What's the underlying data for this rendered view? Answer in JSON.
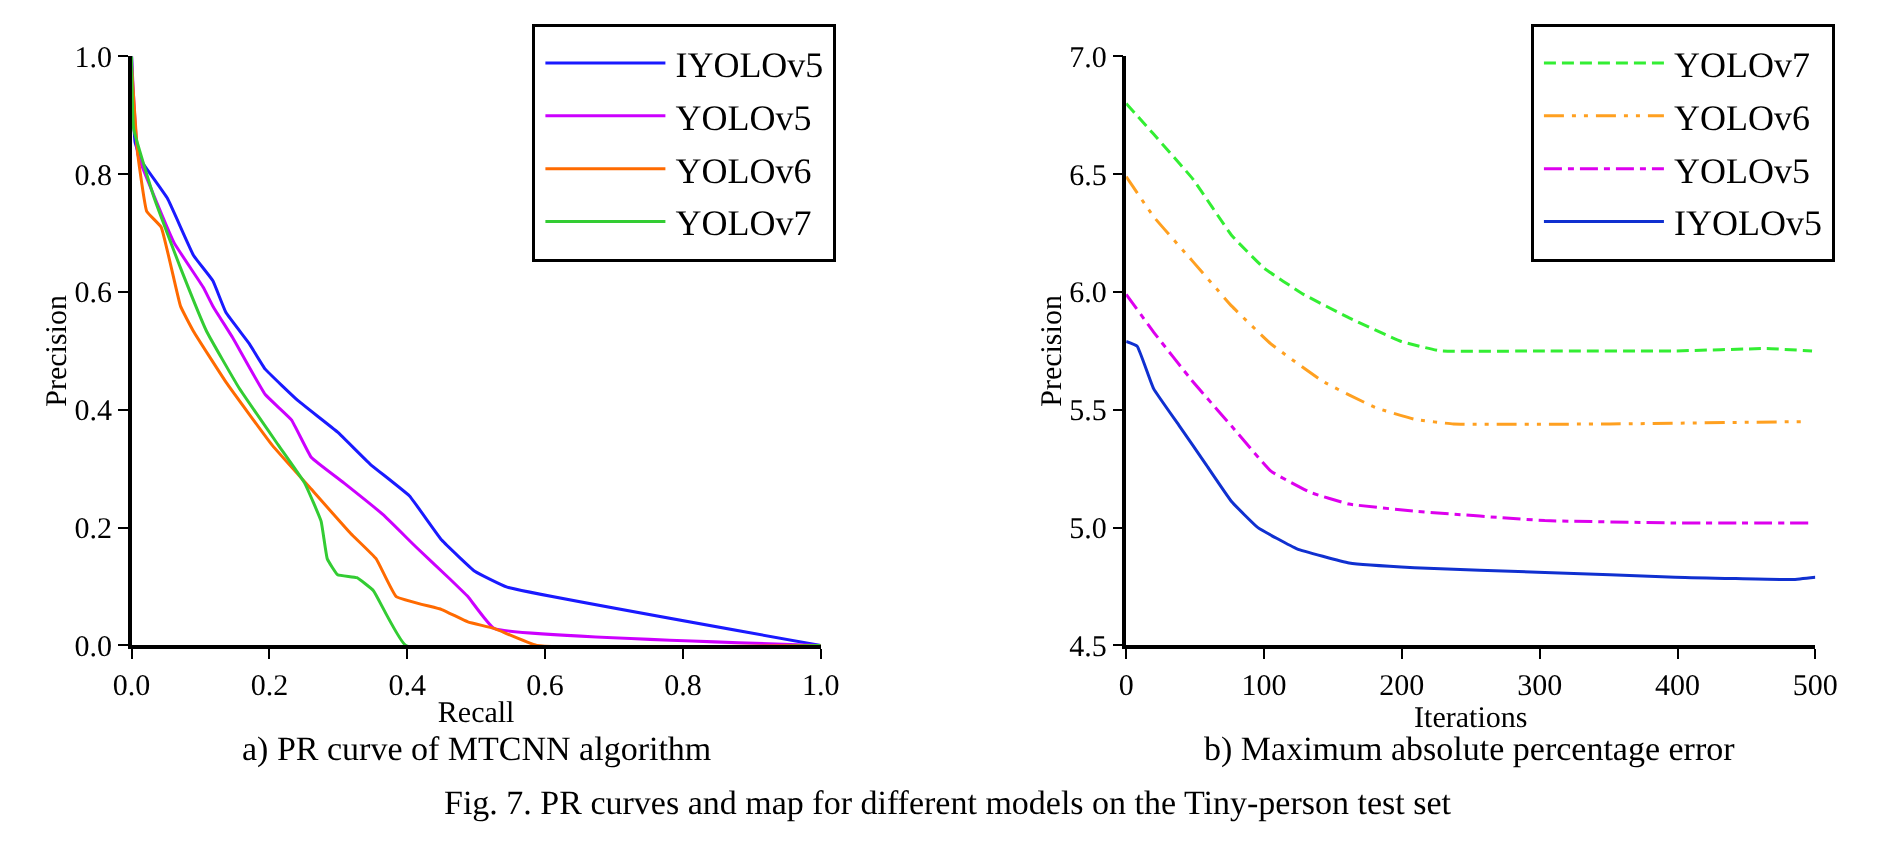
{
  "chart_data": [
    {
      "type": "line",
      "title": "a) PR curve of MTCNN algorithm",
      "xlabel": "Recall",
      "ylabel": "Precision",
      "xlim": [
        0,
        1
      ],
      "ylim": [
        0,
        1
      ],
      "xticks": [
        {
          "value": 0,
          "label": "0.0"
        },
        0.2,
        0.4,
        0.6,
        0.8,
        {
          "value": 1,
          "label": "1.0"
        }
      ],
      "yticks": [
        {
          "value": 0,
          "label": "0.0"
        },
        0.2,
        0.4,
        0.6,
        0.8,
        {
          "value": 1,
          "label": "1.0"
        }
      ],
      "legend": "top right",
      "line_style": "solid",
      "marker": "none",
      "annotations": [
        "Fig. 7. PR curves and map for different models on the Tiny-person test set"
      ],
      "series": [
        {
          "name": "IYOLOv5",
          "color": "#1a1aff",
          "x": [
            0,
            0.005,
            0.014,
            0.052,
            0.09,
            0.118,
            0.137,
            0.171,
            0.194,
            0.242,
            0.299,
            0.346,
            0.403,
            0.45,
            0.498,
            0.545,
            1.0
          ],
          "values": [
            1.0,
            0.855,
            0.823,
            0.759,
            0.662,
            0.619,
            0.565,
            0.512,
            0.469,
            0.415,
            0.362,
            0.308,
            0.254,
            0.179,
            0.126,
            0.099,
            0
          ]
        },
        {
          "name": "YOLOv5",
          "color": "#cc00ff",
          "x": [
            0,
            0.009,
            0.038,
            0.062,
            0.104,
            0.118,
            0.147,
            0.194,
            0.232,
            0.261,
            0.308,
            0.365,
            0.412,
            0.46,
            0.488,
            0.526,
            1.0
          ],
          "values": [
            1.0,
            0.834,
            0.748,
            0.683,
            0.608,
            0.576,
            0.522,
            0.426,
            0.383,
            0.319,
            0.276,
            0.222,
            0.168,
            0.115,
            0.083,
            0.029,
            0
          ]
        },
        {
          "name": "YOLOv6",
          "color": "#ff6a00",
          "x": [
            0,
            0.009,
            0.022,
            0.043,
            0.071,
            0.09,
            0.137,
            0.204,
            0.261,
            0.318,
            0.355,
            0.384,
            0.45,
            0.488,
            0.526,
            0.588,
            1.0
          ],
          "values": [
            0.984,
            0.834,
            0.737,
            0.71,
            0.576,
            0.533,
            0.447,
            0.34,
            0.265,
            0.19,
            0.147,
            0.083,
            0.061,
            0.04,
            0.029,
            0,
            0
          ]
        },
        {
          "name": "YOLOv7",
          "color": "#33cc33",
          "x": [
            0,
            0.003,
            0.033,
            0.071,
            0.109,
            0.156,
            0.213,
            0.251,
            0.275,
            0.284,
            0.299,
            0.327,
            0.351,
            0.398,
            1.0
          ],
          "values": [
            1.0,
            0.877,
            0.759,
            0.641,
            0.533,
            0.437,
            0.34,
            0.276,
            0.211,
            0.147,
            0.12,
            0.115,
            0.093,
            0,
            0
          ]
        }
      ]
    },
    {
      "type": "line",
      "title": "b) Maximum absolute percentage error",
      "xlabel": "Iterations",
      "ylabel": "Precision",
      "xlim": [
        0,
        500
      ],
      "ylim": [
        4.5,
        7.0
      ],
      "xticks": [
        0,
        100,
        200,
        300,
        400,
        500
      ],
      "yticks": [
        4.5,
        {
          "value": 5,
          "label": "5.0"
        },
        5.5,
        {
          "value": 6,
          "label": "6.0"
        },
        6.5,
        {
          "value": 7,
          "label": "7.0"
        }
      ],
      "legend": "top right",
      "marker": "none",
      "series": [
        {
          "name": "YOLOv7",
          "color": "#33ee33",
          "line_style": "dashed",
          "x": [
            0,
            19.9,
            48.3,
            76.6,
            100.3,
            128.7,
            161.8,
            199.6,
            228,
            303.7,
            398.3,
            464.5,
            497.6
          ],
          "values": [
            6.8,
            6.67,
            6.48,
            6.24,
            6.1,
            5.99,
            5.89,
            5.79,
            5.75,
            5.75,
            5.75,
            5.76,
            5.75
          ]
        },
        {
          "name": "YOLOv6",
          "color": "#ffa020",
          "line_style": "dashdotdot",
          "x": [
            0,
            19.9,
            48.3,
            76.6,
            105,
            142.9,
            180.7,
            209.1,
            237.5,
            351,
            490.5
          ],
          "values": [
            6.49,
            6.32,
            6.13,
            5.94,
            5.78,
            5.62,
            5.51,
            5.46,
            5.44,
            5.44,
            5.45
          ]
        },
        {
          "name": "YOLOv5",
          "color": "#dd00ee",
          "line_style": "dashdot",
          "x": [
            0,
            19.9,
            48.3,
            76.6,
            105,
            133.4,
            161.8,
            209.1,
            303.7,
            398.3,
            497.6
          ],
          "values": [
            5.99,
            5.83,
            5.62,
            5.43,
            5.24,
            5.15,
            5.1,
            5.07,
            5.03,
            5.02,
            5.02
          ]
        },
        {
          "name": "IYOLOv5",
          "color": "#1030d0",
          "line_style": "solid",
          "x": [
            0,
            8,
            19.9,
            38.8,
            57.7,
            76.6,
            95.6,
            123.9,
            161.8,
            209.1,
            303.7,
            398.3,
            483.4,
            500
          ],
          "values": [
            5.79,
            5.77,
            5.59,
            5.43,
            5.27,
            5.11,
            5.0,
            4.91,
            4.85,
            4.83,
            4.81,
            4.79,
            4.78,
            4.79
          ]
        }
      ]
    }
  ]
}
